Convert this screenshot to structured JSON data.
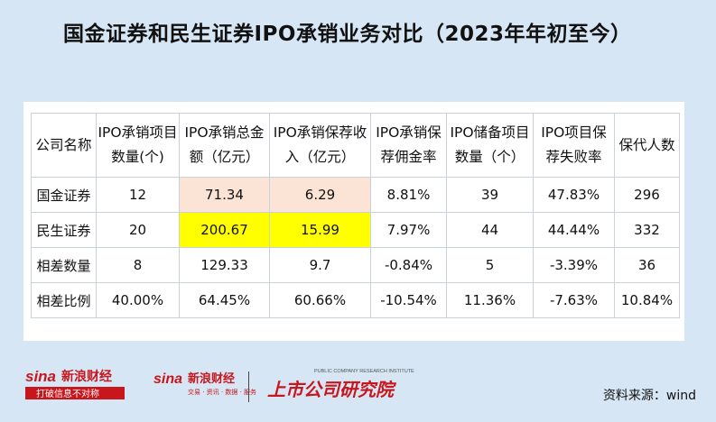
{
  "title": "国金证券和民生证券IPO承销业务对比（2023年年初至今）",
  "table": {
    "headers": [
      [
        "公司名称"
      ],
      [
        "IPO承销项目",
        "数量(个)"
      ],
      [
        "IPO承销总金",
        "额（亿元）"
      ],
      [
        "IPO承销保荐收",
        "入（亿元）"
      ],
      [
        "IPO承销保",
        "荐佣金率"
      ],
      [
        "IPO储备项目",
        "数量（个）"
      ],
      [
        "IPO项目保",
        "荐失败率"
      ],
      [
        "保代人数"
      ]
    ],
    "rows": [
      [
        "国金证券",
        "12",
        "71.34",
        "6.29",
        "8.81%",
        "39",
        "47.83%",
        "296"
      ],
      [
        "民生证券",
        "20",
        "200.67",
        "15.99",
        "7.97%",
        "44",
        "44.44%",
        "332"
      ],
      [
        "相差数量",
        "8",
        "129.33",
        "9.7",
        "-0.84%",
        "5",
        "-3.39%",
        "36"
      ],
      [
        "相差比例",
        "40.00%",
        "64.45%",
        "60.66%",
        "-10.54%",
        "11.36%",
        "-7.63%",
        "10.84%"
      ]
    ]
  },
  "highlight_colors": {
    "peach": "#fbe4d5",
    "yellow": "#ffff00"
  },
  "logos": {
    "sina_finance": {
      "brand": "sina",
      "name": "新浪财经",
      "tagline": "打破信息不对称"
    },
    "sina_finance_2": {
      "brand": "sina",
      "name": "新浪财经",
      "tagline": "交易 · 资讯 · 数据 · 服务"
    },
    "institute": {
      "name": "上市公司研究院",
      "en": "PUBLIC COMPANY RESEARCH INSTITUTE"
    }
  },
  "source": "资料来源：wind"
}
